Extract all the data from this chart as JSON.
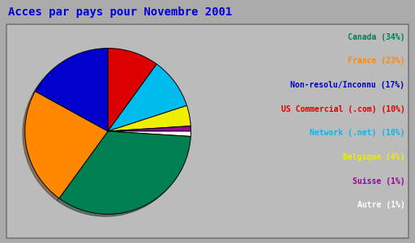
{
  "title": "Acces par pays pour Novembre 2001",
  "title_color": "#0000dd",
  "background_color": "#aaaaaa",
  "inner_background": "#bbbbbb",
  "labels": [
    "Canada (34%)",
    "France (23%)",
    "Non-resolu/Inconnu (17%)",
    "US Commercial (.com) (10%)",
    "Network (.net) (10%)",
    "Belgique (4%)",
    "Suisse (1%)",
    "Autre (1%)"
  ],
  "values": [
    34,
    23,
    17,
    10,
    10,
    4,
    1,
    1
  ],
  "colors": [
    "#008050",
    "#ff8800",
    "#0000cc",
    "#dd0000",
    "#00bbee",
    "#eeee00",
    "#990099",
    "#ffffff"
  ],
  "label_colors": [
    "#008050",
    "#ff8800",
    "#0000cc",
    "#dd0000",
    "#00bbee",
    "#eeee00",
    "#990099",
    "#ffffff"
  ],
  "startangle": 90,
  "fontsize_title": 10,
  "fontsize_legend": 7
}
